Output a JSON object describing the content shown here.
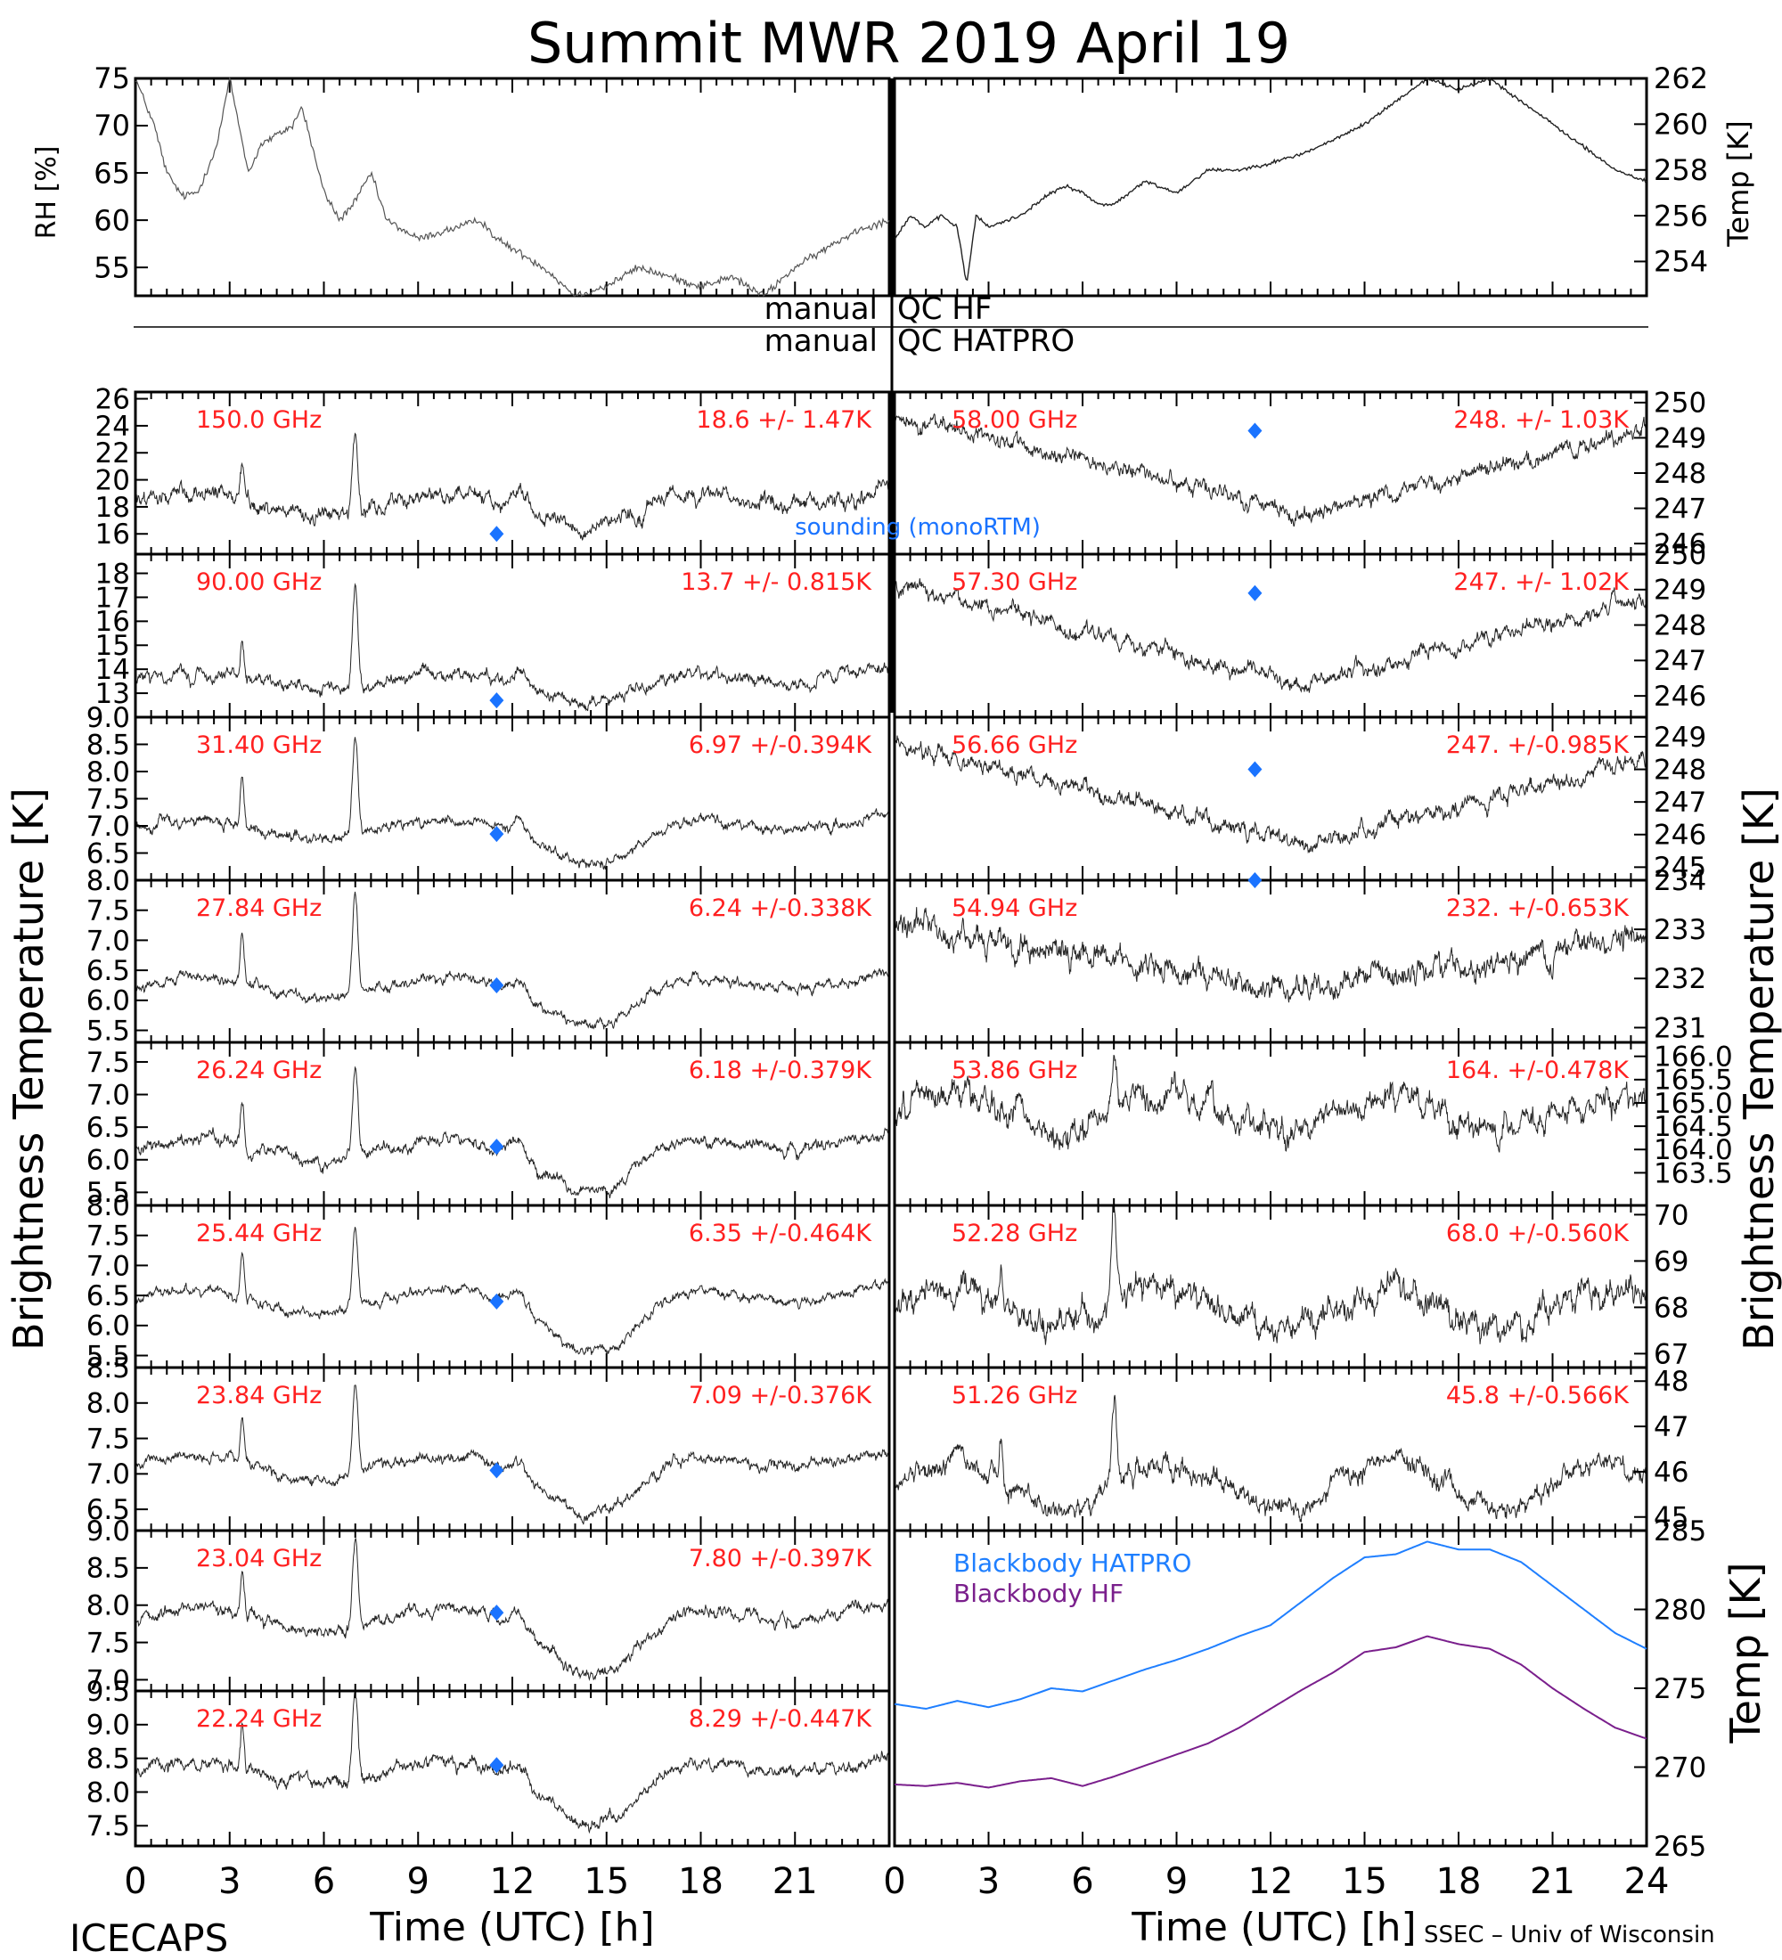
{
  "title": "Summit MWR 2019 April 19",
  "footer": {
    "left": "ICECAPS",
    "right": "SSEC – Univ of Wisconsin"
  },
  "axes": {
    "x_label": "Time (UTC) [h]",
    "x_ticks": [
      "0",
      "3",
      "6",
      "9",
      "12",
      "15",
      "18",
      "21",
      "24"
    ],
    "left_x_ticks": [
      "0",
      "3",
      "6",
      "9",
      "12",
      "15",
      "18",
      "21"
    ],
    "rh_label": "RH [%]",
    "temp_label": "Temp [K]",
    "tb_label": "Brightness Temperature [K]",
    "bb_label": "Temp [K]"
  },
  "qc": {
    "left1": "manual",
    "right1": "QC HF",
    "left2": "manual",
    "right2": "QC HATPRO"
  },
  "sounding_label": "sounding (monoRTM)",
  "colors": {
    "text_red": "#ff2020",
    "diamond": "#1a73ff",
    "hatpro": "#1f7fff",
    "hf": "#7a1f8c",
    "trace": "#000000"
  },
  "chart_data": {
    "type": "line",
    "rh": {
      "ylim": [
        52,
        75
      ],
      "ticks": [
        "75",
        "70",
        "65",
        "60",
        "55"
      ],
      "tick_values": [
        75,
        70,
        65,
        60,
        55
      ],
      "x": [
        0,
        0.6,
        1,
        1.5,
        2,
        2.6,
        3,
        3.3,
        3.6,
        4,
        4.5,
        5,
        5.3,
        6,
        6.5,
        7,
        7.5,
        8,
        9,
        10,
        11,
        11.5,
        12,
        13,
        14,
        15,
        16,
        17,
        18,
        19,
        20,
        21,
        22,
        23,
        24
      ],
      "y": [
        75,
        70,
        65,
        62.5,
        63,
        68,
        75,
        70,
        65,
        68,
        69,
        70,
        72,
        63,
        60,
        62,
        65,
        60,
        58,
        59,
        60,
        58,
        57,
        55,
        52,
        53,
        55,
        54,
        53,
        54,
        52,
        55,
        57,
        59,
        60
      ]
    },
    "temp": {
      "ylim": [
        252.5,
        262
      ],
      "ticks": [
        "262",
        "260",
        "258",
        "256",
        "254"
      ],
      "tick_values": [
        262,
        260,
        258,
        256,
        254
      ],
      "x": [
        0,
        0.5,
        1,
        1.5,
        2,
        2.3,
        2.6,
        3,
        4,
        5,
        5.5,
        6,
        6.5,
        7,
        8,
        9,
        10,
        11,
        12,
        13,
        14,
        15,
        16,
        17,
        18,
        19,
        20,
        21,
        22,
        23,
        24
      ],
      "y": [
        255,
        256,
        255.5,
        256,
        255.5,
        253,
        256,
        255.5,
        256,
        257,
        257.3,
        257,
        256.5,
        256.5,
        257.5,
        257,
        258,
        258,
        258.3,
        258.7,
        259.3,
        260,
        261,
        262,
        261.5,
        262,
        261,
        260,
        259,
        258,
        257.5
      ]
    },
    "tb_left": [
      {
        "freq": "150.0 GHz",
        "stats": "18.6 +/-  1.47K",
        "ylim": [
          14.5,
          26.5
        ],
        "ticks": [
          "26",
          "24",
          "22",
          "20",
          "18",
          "16"
        ],
        "tick_values": [
          26,
          24,
          22,
          20,
          18,
          16
        ],
        "sounding": 16.0,
        "base": 18.2,
        "amp": 2.0,
        "drop_amp": 1.2,
        "noise": 0.9,
        "spike": 6
      },
      {
        "freq": "90.00 GHz",
        "stats": "13.7 +/- 0.815K",
        "ylim": [
          12.0,
          18.8
        ],
        "ticks": [
          "18",
          "17",
          "16",
          "15",
          "14",
          "13"
        ],
        "tick_values": [
          18,
          17,
          16,
          15,
          14,
          13
        ],
        "sounding": 12.7,
        "base": 13.5,
        "amp": 1.0,
        "drop_amp": 0.6,
        "noise": 0.4,
        "spike": 4
      },
      {
        "freq": "31.40 GHz",
        "stats": "6.97 +/-0.394K",
        "ylim": [
          6.0,
          9.0
        ],
        "ticks": [
          "9.0",
          "8.5",
          "8.0",
          "7.5",
          "7.0",
          "6.5"
        ],
        "tick_values": [
          9.0,
          8.5,
          8.0,
          7.5,
          7.0,
          6.5
        ],
        "sounding": 6.85,
        "base": 6.95,
        "amp": 0.45,
        "drop_amp": 0.5,
        "noise": 0.15,
        "spike": 1.8
      },
      {
        "freq": "27.84 GHz",
        "stats": "6.24 +/-0.338K",
        "ylim": [
          5.3,
          8.0
        ],
        "ticks": [
          "8.0",
          "7.5",
          "7.0",
          "6.5",
          "6.0",
          "5.5"
        ],
        "tick_values": [
          8.0,
          7.5,
          7.0,
          6.5,
          6.0,
          5.5
        ],
        "sounding": 6.25,
        "base": 6.2,
        "amp": 0.45,
        "drop_amp": 0.45,
        "noise": 0.13,
        "spike": 1.7
      },
      {
        "freq": "26.24 GHz",
        "stats": "6.18 +/-0.379K",
        "ylim": [
          5.3,
          7.8
        ],
        "ticks": [
          "7.5",
          "7.0",
          "6.5",
          "6.0",
          "5.5"
        ],
        "tick_values": [
          7.5,
          7.0,
          6.5,
          6.0,
          5.5
        ],
        "sounding": 6.2,
        "base": 6.15,
        "amp": 0.45,
        "drop_amp": 0.5,
        "noise": 0.14,
        "spike": 1.4
      },
      {
        "freq": "25.44 GHz",
        "stats": "6.35 +/-0.464K",
        "ylim": [
          5.3,
          8.0
        ],
        "ticks": [
          "8.0",
          "7.5",
          "7.0",
          "6.5",
          "6.0",
          "5.5"
        ],
        "tick_values": [
          8.0,
          7.5,
          7.0,
          6.5,
          6.0,
          5.5
        ],
        "sounding": 6.4,
        "base": 6.4,
        "amp": 0.5,
        "drop_amp": 0.7,
        "noise": 0.12,
        "spike": 1.4
      },
      {
        "freq": "23.84 GHz",
        "stats": "7.09 +/-0.376K",
        "ylim": [
          6.2,
          8.5
        ],
        "ticks": [
          "8.5",
          "8.0",
          "7.5",
          "7.0",
          "6.5"
        ],
        "tick_values": [
          8.5,
          8.0,
          7.5,
          7.0,
          6.5
        ],
        "sounding": 7.05,
        "base": 7.1,
        "amp": 0.4,
        "drop_amp": 0.55,
        "noise": 0.12,
        "spike": 1.3
      },
      {
        "freq": "23.04 GHz",
        "stats": "7.80 +/-0.397K",
        "ylim": [
          6.85,
          9.0
        ],
        "ticks": [
          "9.0",
          "8.5",
          "8.0",
          "7.5",
          "7.0"
        ],
        "tick_values": [
          9.0,
          8.5,
          8.0,
          7.5,
          7.0
        ],
        "sounding": 7.9,
        "base": 7.8,
        "amp": 0.4,
        "drop_amp": 0.6,
        "noise": 0.12,
        "spike": 1.3
      },
      {
        "freq": "22.24 GHz",
        "stats": "8.29 +/-0.447K",
        "ylim": [
          7.2,
          9.5
        ],
        "ticks": [
          "9.5",
          "9.0",
          "8.5",
          "8.0",
          "7.5"
        ],
        "tick_values": [
          9.5,
          9.0,
          8.5,
          8.0,
          7.5
        ],
        "sounding": 8.4,
        "base": 8.3,
        "amp": 0.4,
        "drop_amp": 0.65,
        "noise": 0.14,
        "spike": 1.3
      }
    ],
    "tb_right": [
      {
        "freq": "58.00 GHz",
        "stats": "248. +/- 1.03K",
        "ylim": [
          245.7,
          250.3
        ],
        "ticks": [
          "250",
          "249",
          "248",
          "247",
          "246"
        ],
        "tick_values": [
          250,
          249,
          248,
          247,
          246
        ],
        "sounding": 249.2,
        "base": 248.0,
        "amp": 1.5,
        "drop_amp": 0,
        "noise": 0.35,
        "spike": 0,
        "shape": "v"
      },
      {
        "freq": "57.30 GHz",
        "stats": "247. +/- 1.02K",
        "ylim": [
          245.4,
          250.0
        ],
        "ticks": [
          "250",
          "249",
          "248",
          "247",
          "246"
        ],
        "tick_values": [
          250,
          249,
          248,
          247,
          246
        ],
        "sounding": 248.9,
        "base": 247.5,
        "amp": 1.5,
        "drop_amp": 0,
        "noise": 0.35,
        "spike": 0,
        "shape": "v"
      },
      {
        "freq": "56.66 GHz",
        "stats": "247. +/-0.985K",
        "ylim": [
          244.6,
          249.6
        ],
        "ticks": [
          "249",
          "248",
          "247",
          "246",
          "245"
        ],
        "tick_values": [
          249,
          248,
          247,
          246,
          245
        ],
        "sounding": 248.0,
        "base": 247.0,
        "amp": 1.6,
        "drop_amp": 0,
        "noise": 0.4,
        "spike": 0,
        "shape": "v"
      },
      {
        "freq": "54.94 GHz",
        "stats": "232. +/-0.653K",
        "ylim": [
          230.7,
          234.0
        ],
        "ticks": [
          "234",
          "233",
          "232",
          "231"
        ],
        "tick_values": [
          234,
          233,
          232,
          231
        ],
        "sounding": 234.0,
        "base": 232.3,
        "amp": 0.7,
        "drop_amp": 0,
        "noise": 0.4,
        "spike": 0,
        "shape": "v"
      },
      {
        "freq": "53.86 GHz",
        "stats": "164. +/-0.478K",
        "ylim": [
          162.8,
          166.3
        ],
        "ticks": [
          "166.0",
          "165.5",
          "165.0",
          "164.5",
          "164.0",
          "163.5"
        ],
        "tick_values": [
          166.0,
          165.5,
          165.0,
          164.5,
          164.0,
          163.5
        ],
        "sounding": null,
        "base": 164.8,
        "amp": 0.4,
        "drop_amp": 0,
        "noise": 0.45,
        "spike": 1.0,
        "shape": "flat"
      },
      {
        "freq": "52.28 GHz",
        "stats": "68.0 +/-0.560K",
        "ylim": [
          66.7,
          70.2
        ],
        "ticks": [
          "70",
          "69",
          "68",
          "67"
        ],
        "tick_values": [
          70,
          69,
          68,
          67
        ],
        "sounding": null,
        "base": 68.0,
        "amp": 0.4,
        "drop_amp": 0,
        "noise": 0.45,
        "spike": 2.0,
        "shape": "flat"
      },
      {
        "freq": "51.26 GHz",
        "stats": "45.8 +/-0.566K",
        "ylim": [
          44.7,
          48.3
        ],
        "ticks": [
          "48",
          "47",
          "46",
          "45"
        ],
        "tick_values": [
          48,
          47,
          46,
          45
        ],
        "sounding": null,
        "base": 45.7,
        "amp": 0.5,
        "drop_amp": 0,
        "noise": 0.35,
        "spike": 2.0,
        "shape": "flat"
      }
    ],
    "blackbody": {
      "ylim": [
        265,
        285
      ],
      "ticks": [
        "285",
        "280",
        "275",
        "270",
        "265"
      ],
      "tick_values": [
        285,
        280,
        275,
        270,
        265
      ],
      "legend": [
        "Blackbody HATPRO",
        "Blackbody HF"
      ],
      "x": [
        0,
        1,
        2,
        3,
        4,
        5,
        6,
        7,
        8,
        9,
        10,
        11,
        12,
        13,
        14,
        15,
        16,
        17,
        18,
        19,
        20,
        21,
        22,
        23,
        24
      ],
      "hatpro": [
        274,
        273.7,
        274.2,
        273.8,
        274.3,
        275,
        274.8,
        275.5,
        276.2,
        276.8,
        277.5,
        278.3,
        279,
        280.5,
        282,
        283.3,
        283.5,
        284.3,
        283.8,
        283.8,
        283,
        281.5,
        280,
        278.5,
        277.5
      ],
      "hf": [
        268.9,
        268.8,
        269.0,
        268.7,
        269.1,
        269.3,
        268.8,
        269.4,
        270.1,
        270.8,
        271.5,
        272.5,
        273.7,
        274.9,
        276.0,
        277.3,
        277.6,
        278.3,
        277.8,
        277.5,
        276.5,
        275.0,
        273.7,
        272.5,
        271.8
      ]
    }
  }
}
